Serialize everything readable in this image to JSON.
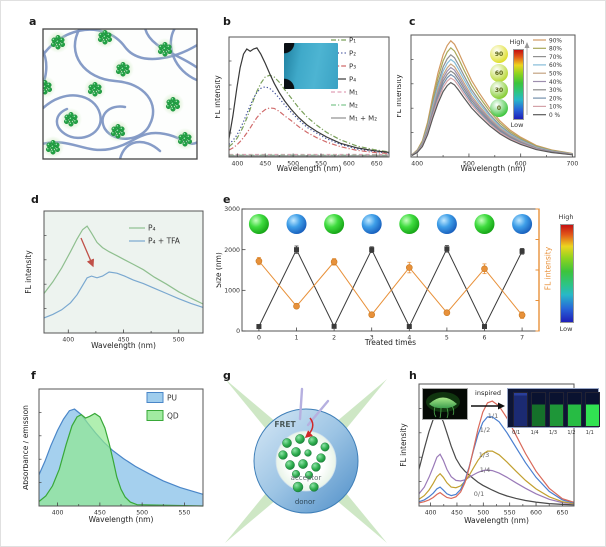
{
  "figure": {
    "panels": [
      "a",
      "b",
      "c",
      "d",
      "e",
      "f",
      "g",
      "h"
    ]
  },
  "panel_a": {
    "type": "schematic-polymer-network",
    "network_color": "#8097c4",
    "dot_color": "#22a244"
  },
  "chart_data": [
    {
      "panel": "b",
      "type": "line",
      "xlabel": "Wavelength (nm)",
      "ylabel": "FL intensity",
      "xlim": [
        385,
        672
      ],
      "xticks": [
        400,
        450,
        500,
        550,
        600,
        650
      ],
      "ylim": [
        0,
        1.05
      ],
      "legend_position": "right-inside",
      "series": [
        {
          "label": "P₁",
          "color": "#7aa05a",
          "dash": "5 2 1.2 2",
          "x": [
            385,
            392,
            399,
            405,
            411,
            417,
            423,
            429,
            435,
            442,
            450,
            458,
            466,
            475,
            485,
            496,
            510,
            525,
            542,
            560,
            585,
            615,
            645,
            672
          ],
          "y": [
            0.09,
            0.12,
            0.16,
            0.21,
            0.27,
            0.34,
            0.42,
            0.5,
            0.575,
            0.645,
            0.7,
            0.715,
            0.7,
            0.655,
            0.59,
            0.52,
            0.43,
            0.35,
            0.28,
            0.215,
            0.15,
            0.095,
            0.065,
            0.045
          ]
        },
        {
          "label": "P₂",
          "color": "#3a4a9a",
          "dash": "1.2 2.2",
          "x": [
            385,
            392,
            399,
            405,
            411,
            417,
            423,
            429,
            435,
            442,
            450,
            458,
            466,
            475,
            485,
            496,
            510,
            525,
            542,
            560,
            585,
            615,
            645,
            672
          ],
          "y": [
            0.11,
            0.145,
            0.19,
            0.245,
            0.31,
            0.38,
            0.45,
            0.515,
            0.565,
            0.6,
            0.615,
            0.6,
            0.565,
            0.515,
            0.455,
            0.395,
            0.325,
            0.26,
            0.21,
            0.16,
            0.11,
            0.07,
            0.048,
            0.035
          ]
        },
        {
          "label": "P₃",
          "color": "#d06a6a",
          "dash": "5 2 1.2 2",
          "x": [
            385,
            392,
            399,
            405,
            411,
            417,
            423,
            429,
            435,
            442,
            450,
            458,
            466,
            475,
            485,
            496,
            510,
            525,
            542,
            560,
            585,
            615,
            645,
            672
          ],
          "y": [
            0.06,
            0.08,
            0.105,
            0.135,
            0.17,
            0.21,
            0.255,
            0.3,
            0.345,
            0.385,
            0.415,
            0.43,
            0.425,
            0.4,
            0.36,
            0.32,
            0.265,
            0.215,
            0.17,
            0.13,
            0.09,
            0.058,
            0.04,
            0.03
          ]
        },
        {
          "label": "P₄",
          "color": "#383838",
          "x": [
            385,
            392,
            399,
            405,
            411,
            417,
            423,
            429,
            435,
            442,
            450,
            458,
            466,
            475,
            485,
            496,
            510,
            525,
            542,
            560,
            585,
            615,
            645,
            672
          ],
          "y": [
            0.16,
            0.36,
            0.6,
            0.78,
            0.9,
            0.945,
            0.925,
            0.945,
            0.955,
            0.9,
            0.82,
            0.73,
            0.645,
            0.565,
            0.49,
            0.42,
            0.345,
            0.28,
            0.225,
            0.175,
            0.12,
            0.08,
            0.055,
            0.04
          ]
        },
        {
          "label": "M₁",
          "color": "#e0a0b8",
          "dash": "4 2.5",
          "x": [
            385,
            670
          ],
          "y": [
            0.022,
            0.022
          ]
        },
        {
          "label": "M₂",
          "color": "#80c890",
          "dash": "5 2 1.2 2",
          "x": [
            385,
            670
          ],
          "y": [
            0.016,
            0.016
          ]
        },
        {
          "label": "M₁ + M₂",
          "color": "#909090",
          "x": [
            385,
            670
          ],
          "y": [
            0.01,
            0.01
          ]
        }
      ]
    },
    {
      "panel": "c",
      "type": "line",
      "xlabel": "Wavelength (nm)",
      "ylabel": "FL intensity",
      "xlim": [
        388,
        705
      ],
      "xticks": [
        400,
        500,
        600,
        700
      ],
      "ylim": [
        0,
        1.05
      ],
      "x": [
        390,
        400,
        410,
        420,
        430,
        440,
        450,
        458,
        465,
        472,
        480,
        490,
        505,
        520,
        540,
        560,
        580,
        600,
        630,
        660,
        700
      ],
      "base_shape": [
        0.02,
        0.06,
        0.14,
        0.3,
        0.52,
        0.72,
        0.88,
        0.96,
        1.0,
        0.97,
        0.9,
        0.8,
        0.66,
        0.55,
        0.42,
        0.31,
        0.23,
        0.17,
        0.1,
        0.06,
        0.03
      ],
      "series": [
        {
          "label": "90%",
          "color": "#d29a62",
          "peak": 1.0
        },
        {
          "label": "80%",
          "color": "#a8a858",
          "peak": 0.94
        },
        {
          "label": "70%",
          "color": "#909090",
          "peak": 0.88
        },
        {
          "label": "60%",
          "color": "#85bcd8",
          "peak": 0.84
        },
        {
          "label": "50%",
          "color": "#c4a482",
          "peak": 0.8
        },
        {
          "label": "40%",
          "color": "#9d8fae",
          "peak": 0.77
        },
        {
          "label": "30%",
          "color": "#8b8b8b",
          "peak": 0.74
        },
        {
          "label": "20%",
          "color": "#7590ac",
          "peak": 0.71
        },
        {
          "label": "10%",
          "color": "#d4a2a8",
          "peak": 0.68
        },
        {
          "label": "0 %",
          "color": "#5a5a5a",
          "peak": 0.64
        }
      ],
      "inset": {
        "circles": [
          {
            "label": "90",
            "color": "#dede2a"
          },
          {
            "label": "60",
            "color": "#b8d832"
          },
          {
            "label": "30",
            "color": "#84cc30"
          },
          {
            "label": "0",
            "color": "#3cc43c"
          }
        ],
        "colorbar_high": "High",
        "colorbar_low": "Low"
      }
    },
    {
      "panel": "d",
      "type": "line",
      "xlabel": "Wavelength (nm)",
      "ylabel": "FL intensity",
      "xlim": [
        378,
        522
      ],
      "xticks": [
        400,
        450,
        500
      ],
      "ylim": [
        0,
        1.05
      ],
      "series": [
        {
          "label": "P₄",
          "color": "#8fbf8f",
          "x": [
            378,
            386,
            394,
            402,
            408,
            413,
            417,
            421,
            426,
            431,
            437,
            444,
            451,
            459,
            468,
            478,
            489,
            500,
            511,
            522
          ],
          "y": [
            0.34,
            0.44,
            0.56,
            0.7,
            0.81,
            0.89,
            0.92,
            0.86,
            0.78,
            0.735,
            0.7,
            0.665,
            0.63,
            0.59,
            0.545,
            0.48,
            0.42,
            0.355,
            0.3,
            0.25
          ]
        },
        {
          "label": "P₄ + TFA",
          "color": "#7aa8d0",
          "x": [
            378,
            386,
            394,
            402,
            408,
            413,
            417,
            421,
            426,
            431,
            437,
            444,
            451,
            459,
            468,
            478,
            489,
            500,
            511,
            522
          ],
          "y": [
            0.13,
            0.16,
            0.2,
            0.26,
            0.33,
            0.41,
            0.475,
            0.49,
            0.475,
            0.49,
            0.525,
            0.515,
            0.49,
            0.455,
            0.425,
            0.385,
            0.34,
            0.295,
            0.255,
            0.22
          ]
        }
      ]
    },
    {
      "panel": "e",
      "type": "line-scatter",
      "xlabel": "Treated times",
      "ylabel": "Size (nm)",
      "right_ylabel": "FL intensity",
      "xlim": [
        -0.45,
        7.45
      ],
      "xticks": [
        0,
        1,
        2,
        3,
        4,
        5,
        6,
        7
      ],
      "ylim": [
        0,
        3000
      ],
      "yticks": [
        0,
        1000,
        2000,
        3000
      ],
      "right_axis_color": "#e8913a",
      "no_minor": true,
      "series": [
        {
          "name": "Size (nm)",
          "color": "#3a3a3a",
          "marker": "square",
          "x": [
            0,
            1,
            2,
            3,
            4,
            5,
            6,
            7
          ],
          "y": [
            110,
            2000,
            115,
            2000,
            110,
            2020,
            110,
            1960
          ],
          "err": [
            40,
            90,
            40,
            70,
            40,
            80,
            40,
            70
          ]
        },
        {
          "name": "FL intensity",
          "color": "#e8913a",
          "marker": "circle",
          "x": [
            0,
            1,
            2,
            3,
            4,
            5,
            6,
            7
          ],
          "y": [
            1720,
            610,
            1700,
            400,
            1560,
            450,
            1530,
            390
          ],
          "err": [
            90,
            60,
            80,
            50,
            130,
            60,
            120,
            80
          ]
        }
      ],
      "top_circles": [
        "green",
        "blue",
        "green",
        "blue",
        "green",
        "blue",
        "green",
        "blue"
      ],
      "colorbar_high": "High",
      "colorbar_low": "Low"
    },
    {
      "panel": "f",
      "type": "area",
      "xlabel": "Wavelength (nm)",
      "ylabel": "Absorbance / emission",
      "xlim": [
        378,
        572
      ],
      "xticks": [
        400,
        450,
        500,
        550
      ],
      "ylim": [
        0,
        1.05
      ],
      "series": [
        {
          "label": "PU",
          "color": "#4a86c8",
          "fill": "#8ec4ea",
          "fill_opacity": 0.8,
          "x": [
            378,
            385,
            392,
            400,
            407,
            414,
            420,
            428,
            436,
            445,
            455,
            465,
            478,
            492,
            508,
            525,
            545,
            572
          ],
          "y": [
            0.28,
            0.4,
            0.54,
            0.68,
            0.78,
            0.855,
            0.87,
            0.82,
            0.74,
            0.655,
            0.57,
            0.5,
            0.425,
            0.355,
            0.29,
            0.225,
            0.165,
            0.105
          ]
        },
        {
          "label": "QD",
          "color": "#38a838",
          "fill": "#90e890",
          "fill_opacity": 0.7,
          "x": [
            378,
            386,
            394,
            402,
            410,
            417,
            423,
            428,
            433,
            438,
            444,
            450,
            456,
            461,
            466,
            470,
            475,
            480,
            486,
            494,
            572
          ],
          "y": [
            0.04,
            0.09,
            0.18,
            0.33,
            0.55,
            0.72,
            0.8,
            0.82,
            0.79,
            0.805,
            0.83,
            0.8,
            0.7,
            0.56,
            0.4,
            0.26,
            0.15,
            0.08,
            0.035,
            0.012,
            0.0
          ]
        }
      ]
    },
    {
      "panel": "h",
      "type": "line",
      "xlabel": "Wavelength (nm)",
      "ylabel": "FL intensity",
      "xlim": [
        378,
        672
      ],
      "xticks": [
        400,
        450,
        500,
        550,
        600,
        650
      ],
      "ylim": [
        0,
        1.0
      ],
      "series": [
        {
          "name": "0/1",
          "color": "#4a4a4a",
          "x": [
            378,
            388,
            397,
            405,
            412,
            418,
            424,
            431,
            439,
            448,
            457,
            465,
            473,
            481,
            490,
            499,
            508,
            517,
            530,
            545,
            562,
            580,
            600,
            625,
            650,
            672
          ],
          "y": [
            0.3,
            0.47,
            0.61,
            0.71,
            0.77,
            0.745,
            0.69,
            0.6,
            0.49,
            0.39,
            0.325,
            0.285,
            0.255,
            0.225,
            0.195,
            0.17,
            0.15,
            0.13,
            0.105,
            0.082,
            0.062,
            0.045,
            0.032,
            0.02,
            0.013,
            0.01
          ]
        },
        {
          "name": "1/4",
          "color": "#9a7ab8",
          "x": [
            378,
            388,
            397,
            405,
            412,
            418,
            424,
            431,
            439,
            448,
            457,
            465,
            473,
            481,
            490,
            499,
            508,
            517,
            530,
            545,
            562,
            580,
            600,
            625,
            650,
            672
          ],
          "y": [
            0.1,
            0.155,
            0.235,
            0.32,
            0.4,
            0.425,
            0.375,
            0.3,
            0.24,
            0.21,
            0.205,
            0.215,
            0.235,
            0.255,
            0.275,
            0.29,
            0.295,
            0.29,
            0.27,
            0.235,
            0.19,
            0.145,
            0.1,
            0.055,
            0.028,
            0.018
          ]
        },
        {
          "name": "1/3",
          "color": "#c2a030",
          "x": [
            378,
            388,
            397,
            405,
            412,
            418,
            424,
            431,
            439,
            448,
            457,
            465,
            473,
            481,
            490,
            499,
            508,
            517,
            530,
            545,
            562,
            580,
            600,
            625,
            650,
            672
          ],
          "y": [
            0.055,
            0.085,
            0.13,
            0.185,
            0.24,
            0.265,
            0.235,
            0.19,
            0.155,
            0.15,
            0.165,
            0.2,
            0.25,
            0.31,
            0.375,
            0.425,
            0.45,
            0.45,
            0.42,
            0.36,
            0.285,
            0.21,
            0.14,
            0.075,
            0.035,
            0.02
          ]
        },
        {
          "name": "1/2",
          "color": "#4a7fd0",
          "x": [
            378,
            388,
            397,
            405,
            412,
            418,
            424,
            431,
            439,
            448,
            457,
            465,
            473,
            481,
            490,
            499,
            508,
            517,
            530,
            545,
            562,
            580,
            600,
            625,
            650,
            672
          ],
          "y": [
            0.035,
            0.05,
            0.075,
            0.105,
            0.14,
            0.155,
            0.13,
            0.1,
            0.085,
            0.095,
            0.135,
            0.21,
            0.32,
            0.45,
            0.585,
            0.685,
            0.73,
            0.73,
            0.69,
            0.6,
            0.48,
            0.355,
            0.235,
            0.12,
            0.05,
            0.025
          ]
        },
        {
          "name": "1/1",
          "color": "#d9695a",
          "x": [
            378,
            388,
            397,
            405,
            412,
            418,
            424,
            431,
            439,
            448,
            457,
            465,
            473,
            481,
            490,
            499,
            508,
            517,
            530,
            545,
            562,
            580,
            600,
            625,
            650,
            672
          ],
          "y": [
            0.025,
            0.035,
            0.05,
            0.07,
            0.095,
            0.11,
            0.09,
            0.07,
            0.062,
            0.075,
            0.115,
            0.19,
            0.31,
            0.46,
            0.63,
            0.77,
            0.845,
            0.86,
            0.82,
            0.72,
            0.58,
            0.43,
            0.285,
            0.145,
            0.06,
            0.03
          ]
        }
      ],
      "annotations": [
        {
          "text": "1/1"
        },
        {
          "text": "1/2"
        },
        {
          "text": "1/3"
        },
        {
          "text": "1/4"
        },
        {
          "text": "0/1"
        }
      ]
    }
  ],
  "panel_g": {
    "fret": "FRET",
    "acceptor": "acceptor",
    "donor": "donor"
  },
  "panel_h_extras": {
    "inspired": "inspired",
    "cuvette_labels": [
      "0/1",
      "1/4",
      "1/3",
      "1/2",
      "1/1"
    ],
    "cuvette_colors": [
      "#1b2a72",
      "#15702a",
      "#1e9638",
      "#27bc44",
      "#31e252"
    ]
  }
}
